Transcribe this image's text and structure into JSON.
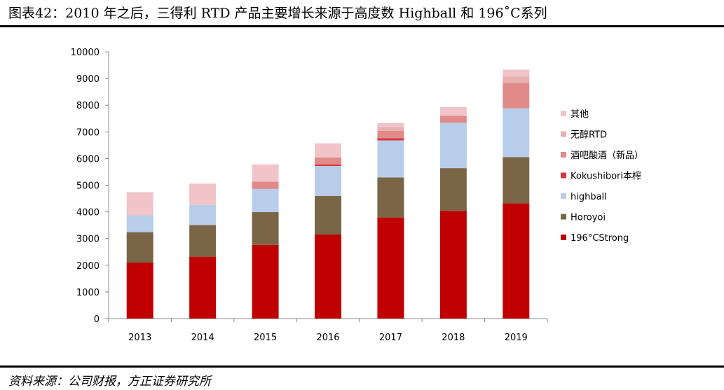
{
  "figure": {
    "title": "图表42：2010 年之后，三得利 RTD 产品主要增长来源于高度数 Highball 和 196˚C系列",
    "source": "资料来源：公司财报，方正证券研究所"
  },
  "chart_data": {
    "type": "bar",
    "stacked": true,
    "categories": [
      "2013",
      "2014",
      "2015",
      "2016",
      "2017",
      "2018",
      "2019"
    ],
    "ylim": [
      0,
      10000
    ],
    "yticks": [
      0,
      1000,
      2000,
      3000,
      4000,
      5000,
      6000,
      7000,
      8000,
      9000,
      10000
    ],
    "grid": false,
    "legend_position": "right",
    "series": [
      {
        "name": "196°CStrong",
        "color": "#c00000",
        "values": [
          2100,
          2320,
          2760,
          3150,
          3790,
          4040,
          4320
        ]
      },
      {
        "name": "Horoyoi",
        "color": "#7a6647",
        "values": [
          1140,
          1190,
          1230,
          1450,
          1500,
          1600,
          1730
        ]
      },
      {
        "name": "highball",
        "color": "#b8cde9",
        "values": [
          630,
          750,
          870,
          1120,
          1390,
          1700,
          1830
        ]
      },
      {
        "name": "Kokushibori本榨",
        "color": "#d9363e",
        "values": [
          0,
          0,
          0,
          60,
          80,
          0,
          0
        ]
      },
      {
        "name": "酒吧酸酒（新品）",
        "color": "#e08a8a",
        "values": [
          0,
          0,
          270,
          260,
          280,
          260,
          950
        ]
      },
      {
        "name": "无醇RTD",
        "color": "#e8b0b0",
        "values": [
          0,
          0,
          0,
          0,
          140,
          0,
          240
        ]
      },
      {
        "name": "其他",
        "color": "#f0c4c8",
        "values": [
          870,
          800,
          650,
          530,
          150,
          330,
          260
        ]
      }
    ]
  }
}
